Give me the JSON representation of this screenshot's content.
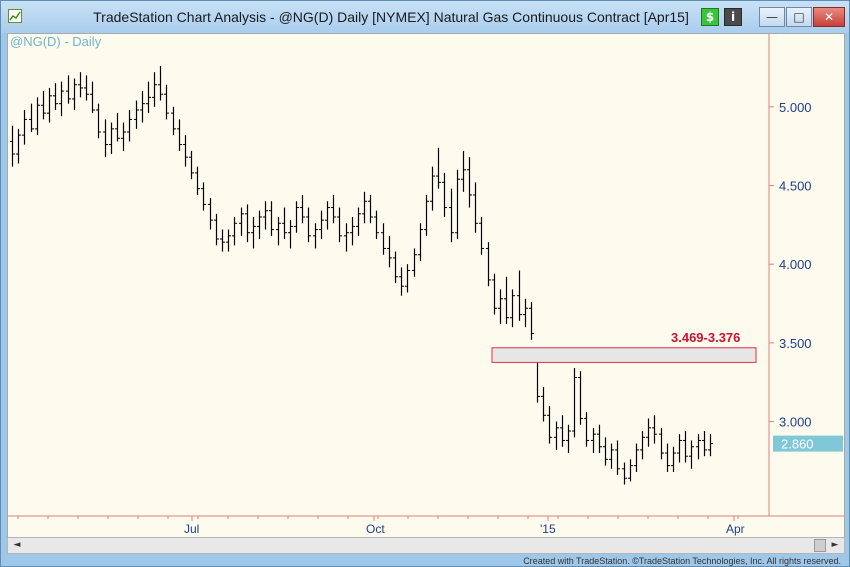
{
  "window": {
    "title": "TradeStation Chart Analysis - @NG(D) Daily [NYMEX] Natural Gas Continuous Contract [Apr15]",
    "buttons": {
      "dollar": "$",
      "info": "i"
    },
    "controls": {
      "minimize": "—",
      "maximize": "□",
      "close": "✕"
    }
  },
  "chart": {
    "symbol_label": "@NG(D) - Daily",
    "last_price": "2.860",
    "zone_label": "3.469-3.376",
    "colors": {
      "background": "#fdfaee",
      "axis_text": "#1f3f8f",
      "axis_line": "#e08080",
      "bar": "#000000",
      "zone_border": "#e0304a",
      "zone_fill": "#e6e6e6",
      "zone_text": "#d01030",
      "last_price_bg": "#80c8d8",
      "symbol_text": "#6fb6c8"
    }
  },
  "chart_data": {
    "type": "bar",
    "ylim": [
      2.4,
      5.45
    ],
    "yticks": [
      "5.000",
      "4.500",
      "4.000",
      "3.500",
      "3.000"
    ],
    "ytick_values": [
      5.0,
      4.5,
      4.0,
      3.5,
      3.0
    ],
    "xticks": [
      "Jul",
      "Oct",
      "'15",
      "Apr"
    ],
    "zone": {
      "low": 3.376,
      "high": 3.469
    },
    "last": 2.86,
    "ohlc": [
      [
        4.78,
        4.88,
        4.62,
        4.7
      ],
      [
        4.7,
        4.86,
        4.64,
        4.82
      ],
      [
        4.82,
        4.98,
        4.76,
        4.92
      ],
      [
        4.92,
        5.02,
        4.84,
        4.86
      ],
      [
        4.86,
        5.06,
        4.82,
        5.01
      ],
      [
        5.01,
        5.1,
        4.92,
        4.96
      ],
      [
        4.96,
        5.12,
        4.9,
        5.07
      ],
      [
        5.07,
        5.15,
        4.98,
        5.02
      ],
      [
        5.02,
        5.16,
        4.94,
        5.1
      ],
      [
        5.1,
        5.2,
        5.02,
        5.05
      ],
      [
        5.05,
        5.18,
        4.98,
        5.14
      ],
      [
        5.14,
        5.22,
        5.06,
        5.12
      ],
      [
        5.12,
        5.2,
        5.04,
        5.08
      ],
      [
        5.08,
        5.16,
        4.96,
        4.98
      ],
      [
        4.98,
        5.02,
        4.8,
        4.84
      ],
      [
        4.84,
        4.92,
        4.68,
        4.76
      ],
      [
        4.76,
        4.9,
        4.7,
        4.86
      ],
      [
        4.86,
        4.96,
        4.78,
        4.8
      ],
      [
        4.8,
        4.9,
        4.72,
        4.84
      ],
      [
        4.84,
        4.98,
        4.78,
        4.92
      ],
      [
        4.92,
        5.04,
        4.86,
        4.98
      ],
      [
        4.98,
        5.1,
        4.9,
        5.02
      ],
      [
        5.02,
        5.16,
        4.96,
        5.06
      ],
      [
        5.06,
        5.22,
        5.0,
        5.14
      ],
      [
        5.14,
        5.26,
        5.04,
        5.08
      ],
      [
        5.08,
        5.14,
        4.92,
        4.96
      ],
      [
        4.96,
        5.0,
        4.82,
        4.86
      ],
      [
        4.86,
        4.92,
        4.72,
        4.76
      ],
      [
        4.76,
        4.82,
        4.62,
        4.68
      ],
      [
        4.68,
        4.72,
        4.54,
        4.58
      ],
      [
        4.58,
        4.62,
        4.44,
        4.48
      ],
      [
        4.48,
        4.52,
        4.34,
        4.38
      ],
      [
        4.38,
        4.42,
        4.22,
        4.28
      ],
      [
        4.28,
        4.32,
        4.12,
        4.16
      ],
      [
        4.16,
        4.22,
        4.08,
        4.14
      ],
      [
        4.14,
        4.22,
        4.08,
        4.18
      ],
      [
        4.18,
        4.3,
        4.12,
        4.26
      ],
      [
        4.26,
        4.36,
        4.18,
        4.32
      ],
      [
        4.32,
        4.38,
        4.14,
        4.2
      ],
      [
        4.2,
        4.3,
        4.1,
        4.24
      ],
      [
        4.24,
        4.34,
        4.16,
        4.3
      ],
      [
        4.3,
        4.4,
        4.22,
        4.34
      ],
      [
        4.34,
        4.4,
        4.18,
        4.22
      ],
      [
        4.22,
        4.3,
        4.12,
        4.26
      ],
      [
        4.26,
        4.36,
        4.16,
        4.2
      ],
      [
        4.2,
        4.28,
        4.1,
        4.24
      ],
      [
        4.24,
        4.4,
        4.2,
        4.36
      ],
      [
        4.36,
        4.44,
        4.26,
        4.3
      ],
      [
        4.3,
        4.36,
        4.14,
        4.18
      ],
      [
        4.18,
        4.26,
        4.1,
        4.22
      ],
      [
        4.22,
        4.34,
        4.16,
        4.28
      ],
      [
        4.28,
        4.4,
        4.22,
        4.36
      ],
      [
        4.36,
        4.44,
        4.26,
        4.3
      ],
      [
        4.3,
        4.36,
        4.14,
        4.18
      ],
      [
        4.18,
        4.26,
        4.08,
        4.2
      ],
      [
        4.2,
        4.3,
        4.12,
        4.24
      ],
      [
        4.24,
        4.36,
        4.18,
        4.32
      ],
      [
        4.32,
        4.46,
        4.26,
        4.4
      ],
      [
        4.4,
        4.44,
        4.26,
        4.3
      ],
      [
        4.3,
        4.34,
        4.16,
        4.2
      ],
      [
        4.2,
        4.26,
        4.06,
        4.1
      ],
      [
        4.1,
        4.18,
        3.98,
        4.04
      ],
      [
        4.04,
        4.08,
        3.88,
        3.92
      ],
      [
        3.92,
        3.98,
        3.8,
        3.86
      ],
      [
        3.86,
        4.0,
        3.82,
        3.96
      ],
      [
        3.96,
        4.1,
        3.92,
        4.06
      ],
      [
        4.06,
        4.26,
        4.02,
        4.22
      ],
      [
        4.22,
        4.44,
        4.18,
        4.4
      ],
      [
        4.4,
        4.62,
        4.34,
        4.56
      ],
      [
        4.56,
        4.74,
        4.48,
        4.52
      ],
      [
        4.52,
        4.58,
        4.3,
        4.36
      ],
      [
        4.36,
        4.48,
        4.14,
        4.2
      ],
      [
        4.2,
        4.6,
        4.16,
        4.54
      ],
      [
        4.54,
        4.72,
        4.46,
        4.6
      ],
      [
        4.6,
        4.68,
        4.36,
        4.44
      ],
      [
        4.44,
        4.52,
        4.2,
        4.26
      ],
      [
        4.26,
        4.3,
        4.06,
        4.1
      ],
      [
        4.1,
        4.14,
        3.86,
        3.9
      ],
      [
        3.9,
        3.94,
        3.68,
        3.72
      ],
      [
        3.72,
        3.84,
        3.62,
        3.78
      ],
      [
        3.78,
        3.92,
        3.62,
        3.66
      ],
      [
        3.66,
        3.84,
        3.6,
        3.8
      ],
      [
        3.8,
        3.96,
        3.64,
        3.68
      ],
      [
        3.68,
        3.78,
        3.6,
        3.72
      ],
      [
        3.72,
        3.76,
        3.52,
        3.56
      ],
      [
        3.38,
        3.4,
        3.12,
        3.16
      ],
      [
        3.16,
        3.22,
        3.0,
        3.04
      ],
      [
        3.04,
        3.1,
        2.86,
        2.9
      ],
      [
        2.9,
        3.0,
        2.82,
        2.96
      ],
      [
        2.96,
        3.04,
        2.84,
        2.88
      ],
      [
        2.88,
        2.98,
        2.8,
        2.94
      ],
      [
        2.94,
        3.34,
        2.9,
        3.28
      ],
      [
        3.28,
        3.32,
        2.98,
        3.02
      ],
      [
        3.02,
        3.06,
        2.84,
        2.88
      ],
      [
        2.88,
        2.96,
        2.8,
        2.92
      ],
      [
        2.92,
        2.98,
        2.8,
        2.84
      ],
      [
        2.84,
        2.9,
        2.72,
        2.76
      ],
      [
        2.76,
        2.86,
        2.7,
        2.82
      ],
      [
        2.82,
        2.88,
        2.66,
        2.7
      ],
      [
        2.7,
        2.74,
        2.6,
        2.64
      ],
      [
        2.64,
        2.76,
        2.62,
        2.72
      ],
      [
        2.72,
        2.86,
        2.68,
        2.82
      ],
      [
        2.82,
        2.94,
        2.76,
        2.9
      ],
      [
        2.9,
        3.02,
        2.84,
        2.96
      ],
      [
        2.96,
        3.04,
        2.86,
        2.92
      ],
      [
        2.92,
        2.96,
        2.76,
        2.8
      ],
      [
        2.8,
        2.86,
        2.68,
        2.72
      ],
      [
        2.72,
        2.84,
        2.68,
        2.8
      ],
      [
        2.8,
        2.92,
        2.74,
        2.88
      ],
      [
        2.88,
        2.94,
        2.74,
        2.78
      ],
      [
        2.78,
        2.88,
        2.7,
        2.84
      ],
      [
        2.84,
        2.92,
        2.76,
        2.88
      ],
      [
        2.88,
        2.94,
        2.78,
        2.82
      ],
      [
        2.82,
        2.92,
        2.78,
        2.86
      ]
    ]
  },
  "scrollbar": {
    "left_arrow": "◄",
    "right_arrow": "►"
  },
  "footer": {
    "credit": "Created with TradeStation. ©TradeStation Technologies, Inc. All rights reserved."
  }
}
